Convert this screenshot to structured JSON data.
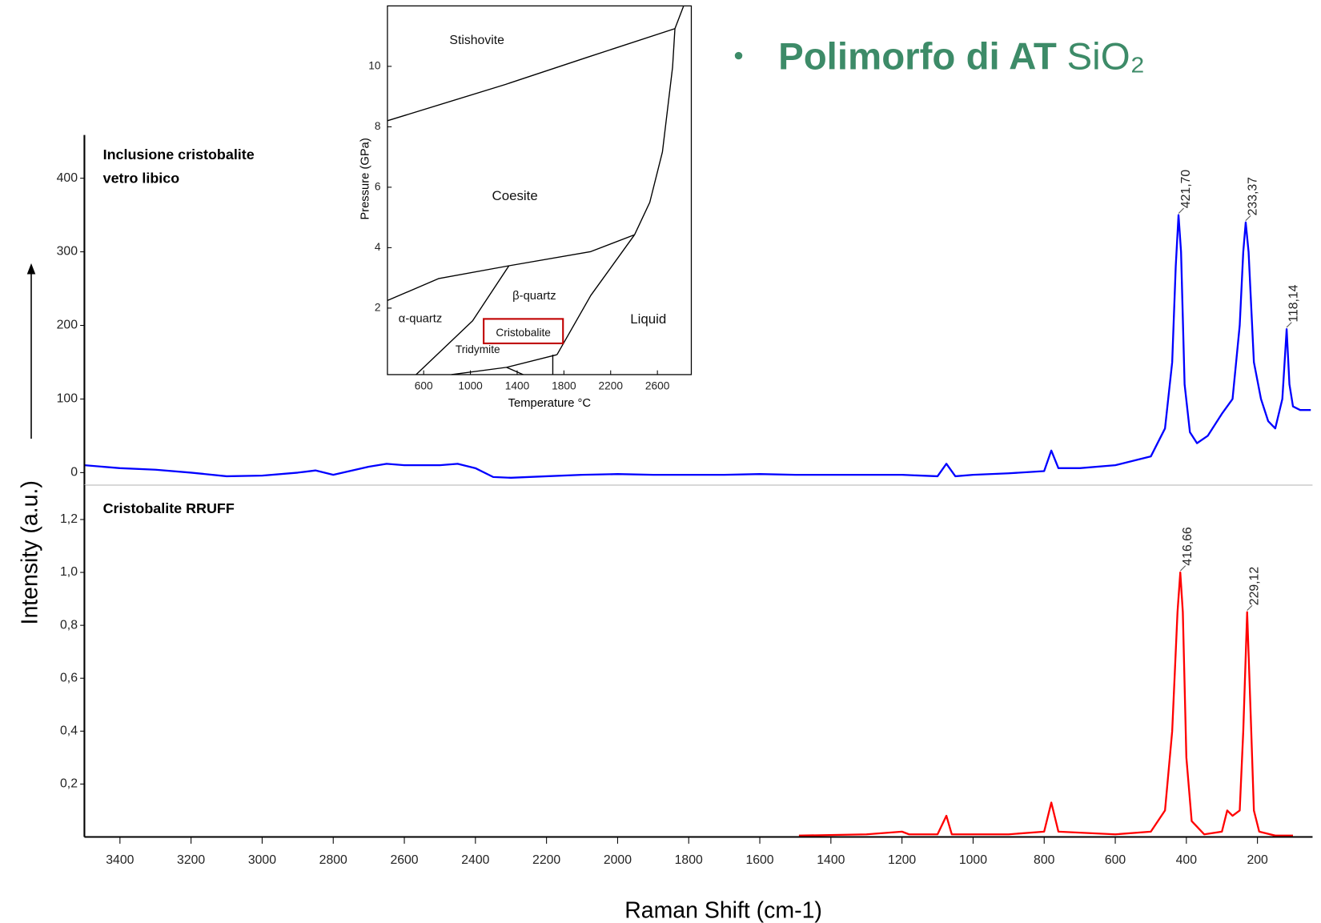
{
  "title": "Polimorfo di AT",
  "formula": "SiO₂",
  "chart_data": [
    {
      "type": "line",
      "label": [
        "Inclusione cristobalite",
        "vetro libico"
      ],
      "ylabel": "Intensity (a.u.)",
      "color": "#0000ff",
      "xlim": [
        3500,
        45
      ],
      "ylim": [
        -17,
        453
      ],
      "yticks": [
        0,
        100,
        200,
        300,
        400
      ],
      "x": [
        3500,
        3400,
        3300,
        3200,
        3100,
        3000,
        2900,
        2850,
        2800,
        2700,
        2650,
        2600,
        2500,
        2450,
        2400,
        2350,
        2300,
        2200,
        2100,
        2000,
        1900,
        1800,
        1700,
        1600,
        1500,
        1400,
        1300,
        1200,
        1100,
        1075,
        1050,
        1000,
        900,
        800,
        780,
        760,
        700,
        600,
        500,
        460,
        440,
        430,
        422,
        415,
        405,
        390,
        370,
        340,
        300,
        270,
        250,
        240,
        233,
        225,
        210,
        190,
        170,
        150,
        130,
        118,
        110,
        100,
        80,
        50
      ],
      "values": [
        10,
        6,
        4,
        0,
        -5,
        -4,
        0,
        3,
        -3,
        8,
        12,
        10,
        10,
        12,
        6,
        -6,
        -7,
        -5,
        -3,
        -2,
        -3,
        -3,
        -3,
        -2,
        -3,
        -3,
        -3,
        -3,
        -5,
        12,
        -5,
        -3,
        -1,
        2,
        30,
        6,
        6,
        10,
        22,
        60,
        150,
        280,
        350,
        300,
        120,
        55,
        40,
        50,
        80,
        100,
        200,
        300,
        340,
        300,
        150,
        100,
        70,
        60,
        100,
        195,
        120,
        90,
        85,
        85
      ],
      "annotations": [
        {
          "x": 421.7,
          "y": 350,
          "label": "421,70"
        },
        {
          "x": 233.37,
          "y": 340,
          "label": "233,37"
        },
        {
          "x": 118.14,
          "y": 195,
          "label": "118,14"
        }
      ]
    },
    {
      "type": "line",
      "label": "Cristobalite RRUFF",
      "xlabel": "Raman Shift (cm-1)",
      "color": "#ff0000",
      "xlim": [
        3500,
        45
      ],
      "ylim": [
        0,
        1.33
      ],
      "xticks": [
        3400,
        3200,
        3000,
        2800,
        2600,
        2400,
        2200,
        2000,
        1800,
        1600,
        1400,
        1200,
        1000,
        800,
        600,
        400,
        200
      ],
      "yticks": [
        {
          "value": 0.2,
          "label": "0,2"
        },
        {
          "value": 0.4,
          "label": "0,4"
        },
        {
          "value": 0.6,
          "label": "0,6"
        },
        {
          "value": 0.8,
          "label": "0,8"
        },
        {
          "value": 1.0,
          "label": "1,0"
        },
        {
          "value": 1.2,
          "label": "1,2"
        }
      ],
      "x": [
        1490,
        1300,
        1200,
        1180,
        1100,
        1075,
        1060,
        900,
        800,
        780,
        760,
        600,
        500,
        460,
        440,
        425,
        417,
        410,
        400,
        385,
        350,
        300,
        285,
        270,
        250,
        240,
        229,
        220,
        210,
        195,
        150,
        100
      ],
      "values": [
        0.005,
        0.01,
        0.02,
        0.01,
        0.01,
        0.08,
        0.01,
        0.01,
        0.02,
        0.13,
        0.02,
        0.01,
        0.02,
        0.1,
        0.4,
        0.85,
        1.0,
        0.85,
        0.3,
        0.06,
        0.01,
        0.02,
        0.1,
        0.08,
        0.1,
        0.4,
        0.85,
        0.5,
        0.1,
        0.02,
        0.005,
        0.005
      ],
      "annotations": [
        {
          "x": 416.66,
          "y": 1.0,
          "label": "416,66"
        },
        {
          "x": 229.12,
          "y": 0.85,
          "label": "229,12"
        }
      ]
    },
    {
      "type": "line",
      "xlabel": "Temperature °C",
      "ylabel": "Pressure (GPa)",
      "color": "#000000",
      "xlim": [
        290,
        2890
      ],
      "ylim": [
        -0.2,
        12
      ],
      "xticks": [
        600,
        1000,
        1400,
        1800,
        2200,
        2600
      ],
      "yticks": [
        2,
        4,
        6,
        8,
        10
      ],
      "regions": [
        "Stishovite",
        "Coesite",
        "β-quartz",
        "α-quartz",
        "Cristobalite",
        "Tridymite",
        "Liquid"
      ],
      "series": [
        {
          "x": [
            290,
            1300,
            2000,
            2750
          ],
          "values": [
            8.2,
            9.4,
            10.3,
            11.25
          ]
        },
        {
          "x": [
            2750,
            2824
          ],
          "values": [
            11.25,
            12
          ]
        },
        {
          "x": [
            2750,
            2730,
            2643,
            2535,
            2405
          ],
          "values": [
            11.25,
            9.97,
            7.17,
            5.5,
            4.43
          ]
        },
        {
          "x": [
            290,
            730,
            1329,
            2030,
            2405
          ],
          "values": [
            2.25,
            2.98,
            3.4,
            3.87,
            4.43
          ]
        },
        {
          "x": [
            1329,
            1019,
            535
          ],
          "values": [
            3.4,
            1.58,
            -0.2
          ]
        },
        {
          "x": [
            2405,
            2030,
            1741
          ],
          "values": [
            4.43,
            2.42,
            0.46
          ]
        },
        {
          "x": [
            838,
            1308,
            1741
          ],
          "values": [
            -0.2,
            0.04,
            0.46
          ]
        },
        {
          "x": [
            1705,
            1705
          ],
          "values": [
            0.46,
            -0.2
          ]
        },
        {
          "x": [
            1308,
            1452
          ],
          "values": [
            0.04,
            -0.2
          ]
        }
      ]
    }
  ]
}
